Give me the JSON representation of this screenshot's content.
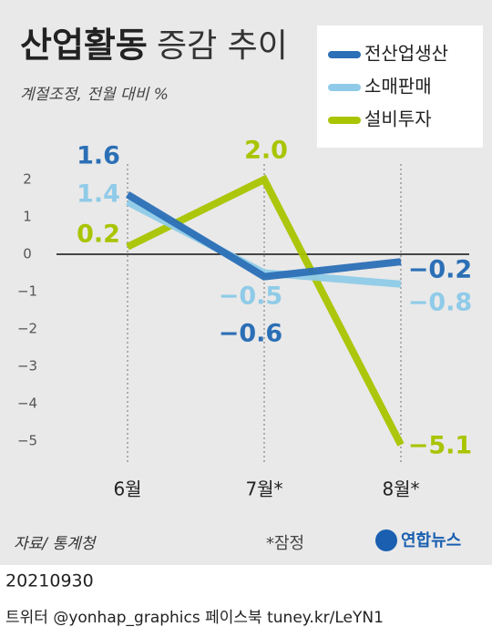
{
  "chart_data": {
    "type": "line",
    "title": "산업활동",
    "title_rest": "증감 추이",
    "subtitle": "계절조정, 전월 대비 %",
    "categories": [
      "6월",
      "7월*",
      "8월*"
    ],
    "series": [
      {
        "name": "전산업생산",
        "color": "#2b6fb6",
        "values": [
          1.6,
          -0.6,
          -0.2
        ],
        "value_labels": [
          "1.6",
          "−0.6",
          "−0.2"
        ]
      },
      {
        "name": "소매판매",
        "color": "#8fcbe8",
        "values": [
          1.4,
          -0.5,
          -0.8
        ],
        "value_labels": [
          "1.4",
          "−0.5",
          "−0.8"
        ]
      },
      {
        "name": "설비투자",
        "color": "#a9c400",
        "values": [
          0.2,
          2.0,
          -5.1
        ],
        "value_labels": [
          "0.2",
          "2.0",
          "−5.1"
        ]
      }
    ],
    "ylim": [
      -5.5,
      2.5
    ],
    "yticks": [
      2,
      1,
      0,
      {
        "value": -1,
        "label": "−1"
      },
      {
        "value": -2,
        "label": "−2"
      },
      {
        "value": -3,
        "label": "−3"
      },
      {
        "value": -4,
        "label": "−4"
      },
      {
        "value": -5,
        "label": "−5"
      }
    ],
    "legend": "top-right",
    "source": "자료/ 통계청",
    "note": "*잠정",
    "logo": "연합뉴스"
  },
  "footer": {
    "date": "20210930",
    "credit": "트위터 @yonhap_graphics  페이스북 tuney.kr/LeYN1"
  }
}
